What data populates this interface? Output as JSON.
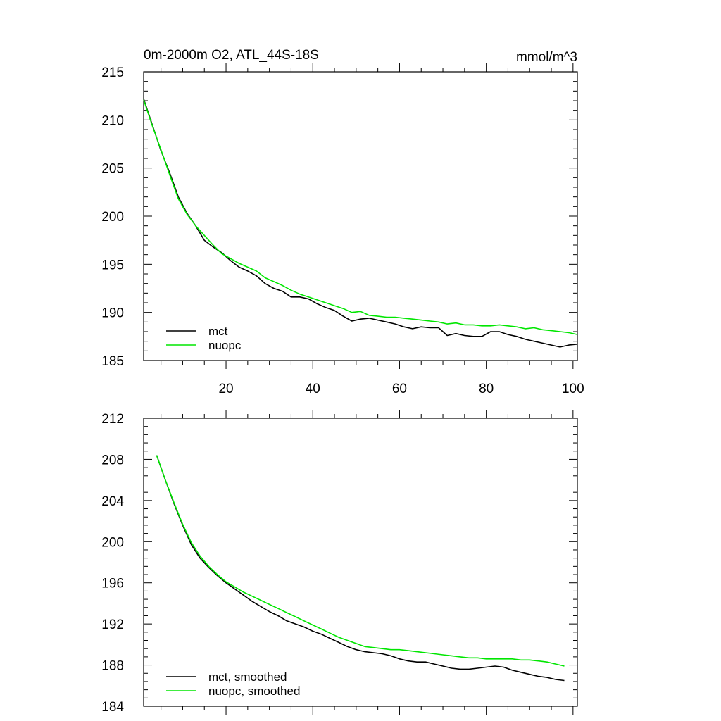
{
  "chart_data": [
    {
      "type": "line",
      "title": "0m-2000m O2, ATL_44S-18S",
      "units": "mmol/m^3",
      "xlim": [
        1,
        101
      ],
      "ylim": [
        185,
        215
      ],
      "xticks": [
        20,
        40,
        60,
        80,
        100
      ],
      "xtick_labels": [
        "20",
        "40",
        "60",
        "80",
        "100"
      ],
      "yticks": [
        185,
        190,
        195,
        200,
        205,
        210,
        215
      ],
      "ytick_labels": [
        "185",
        "190",
        "195",
        "200",
        "205",
        "210",
        "215"
      ],
      "legend_position": "bottom-left",
      "x": [
        1,
        3,
        5,
        7,
        9,
        11,
        13,
        15,
        17,
        19,
        21,
        23,
        25,
        27,
        29,
        31,
        33,
        35,
        37,
        39,
        41,
        43,
        45,
        47,
        49,
        51,
        53,
        55,
        57,
        59,
        61,
        63,
        65,
        67,
        69,
        71,
        73,
        75,
        77,
        79,
        81,
        83,
        85,
        87,
        89,
        91,
        93,
        95,
        97,
        99,
        101
      ],
      "series": [
        {
          "name": "mct",
          "color": "#000000",
          "values": [
            212.2,
            209.5,
            206.8,
            204.5,
            202,
            200.3,
            199,
            197.5,
            196.8,
            196.2,
            195.4,
            194.7,
            194.3,
            193.8,
            193,
            192.5,
            192.2,
            191.6,
            191.6,
            191.4,
            190.9,
            190.5,
            190.2,
            189.6,
            189.1,
            189.3,
            189.4,
            189.2,
            189,
            188.8,
            188.5,
            188.3,
            188.5,
            188.4,
            188.4,
            187.6,
            187.8,
            187.6,
            187.5,
            187.5,
            188,
            188,
            187.7,
            187.5,
            187.2,
            187,
            186.8,
            186.6,
            186.4,
            186.6,
            186.7
          ]
        },
        {
          "name": "nuopc",
          "color": "#00e600",
          "values": [
            212.1,
            209.4,
            206.9,
            204.3,
            201.8,
            200.2,
            199,
            198,
            197,
            196.1,
            195.6,
            195.1,
            194.7,
            194.3,
            193.6,
            193.2,
            192.8,
            192.3,
            191.9,
            191.6,
            191.3,
            191,
            190.7,
            190.4,
            190,
            190.1,
            189.7,
            189.6,
            189.5,
            189.5,
            189.4,
            189.3,
            189.2,
            189.1,
            189,
            188.8,
            188.9,
            188.7,
            188.7,
            188.6,
            188.6,
            188.7,
            188.6,
            188.5,
            188.3,
            188.4,
            188.2,
            188.1,
            188,
            187.9,
            187.7
          ]
        }
      ]
    },
    {
      "type": "line",
      "title": "",
      "xlim": [
        1,
        101
      ],
      "ylim": [
        184,
        212
      ],
      "xticks": [
        20,
        40,
        60,
        80,
        100
      ],
      "xtick_labels": [],
      "yticks": [
        184,
        188,
        192,
        196,
        200,
        204,
        208,
        212
      ],
      "ytick_labels": [
        "184",
        "188",
        "192",
        "196",
        "200",
        "204",
        "208",
        "212"
      ],
      "legend_position": "bottom-left",
      "x": [
        4,
        6,
        8,
        10,
        12,
        14,
        16,
        18,
        20,
        22,
        24,
        26,
        28,
        30,
        32,
        34,
        36,
        38,
        40,
        42,
        44,
        46,
        48,
        50,
        52,
        54,
        56,
        58,
        60,
        62,
        64,
        66,
        68,
        70,
        72,
        74,
        76,
        78,
        80,
        82,
        84,
        86,
        88,
        90,
        92,
        94,
        96,
        98
      ],
      "series": [
        {
          "name": "mct, smoothed",
          "color": "#000000",
          "values": [
            208.4,
            206,
            203.7,
            201.6,
            199.7,
            198.4,
            197.5,
            196.7,
            196,
            195.4,
            194.8,
            194.2,
            193.7,
            193.2,
            192.8,
            192.3,
            192,
            191.7,
            191.3,
            191,
            190.6,
            190.2,
            189.8,
            189.5,
            189.3,
            189.2,
            189.1,
            188.9,
            188.6,
            188.4,
            188.3,
            188.3,
            188.1,
            187.9,
            187.7,
            187.6,
            187.6,
            187.7,
            187.8,
            187.9,
            187.8,
            187.5,
            187.3,
            187.1,
            186.9,
            186.8,
            186.6,
            186.5
          ]
        },
        {
          "name": "nuopc, smoothed",
          "color": "#00e600",
          "values": [
            208.4,
            206,
            203.8,
            201.7,
            199.9,
            198.6,
            197.6,
            196.8,
            196.1,
            195.6,
            195.1,
            194.7,
            194.3,
            193.9,
            193.5,
            193.1,
            192.7,
            192.3,
            191.9,
            191.5,
            191.1,
            190.7,
            190.4,
            190.1,
            189.8,
            189.7,
            189.6,
            189.5,
            189.5,
            189.4,
            189.3,
            189.2,
            189.1,
            189,
            188.9,
            188.8,
            188.7,
            188.7,
            188.6,
            188.6,
            188.6,
            188.6,
            188.5,
            188.5,
            188.4,
            188.3,
            188.1,
            187.9
          ]
        }
      ]
    }
  ]
}
